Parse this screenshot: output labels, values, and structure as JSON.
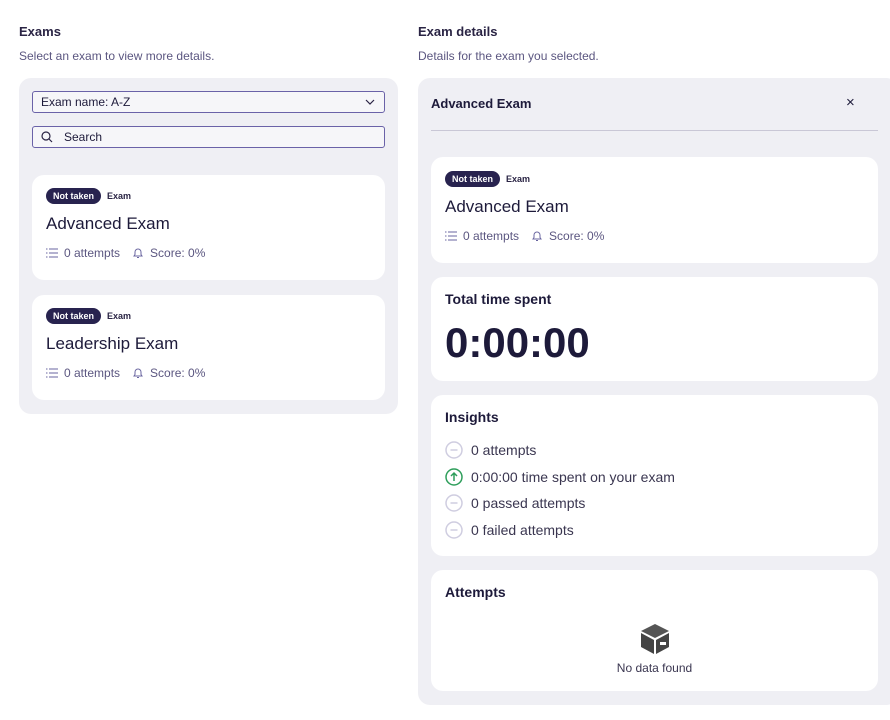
{
  "exams": {
    "title": "Exams",
    "subtitle": "Select an exam to view more details.",
    "sort_value": "Exam name: A-Z",
    "search_placeholder": "Search",
    "items": [
      {
        "status": "Not taken",
        "type": "Exam",
        "name": "Advanced Exam",
        "attempts": "0 attempts",
        "score": "Score: 0%"
      },
      {
        "status": "Not taken",
        "type": "Exam",
        "name": "Leadership Exam",
        "attempts": "0 attempts",
        "score": "Score: 0%"
      }
    ]
  },
  "details": {
    "title": "Exam details",
    "subtitle": "Details for the exam you selected.",
    "header": "Advanced Exam",
    "close": "×",
    "summary": {
      "status": "Not taken",
      "type": "Exam",
      "name": "Advanced Exam",
      "attempts": "0 attempts",
      "score": "Score: 0%"
    },
    "time": {
      "title": "Total time spent",
      "value": "0:00:00"
    },
    "insights": {
      "title": "Insights",
      "items": [
        {
          "icon": "minus-circle-icon",
          "text": "0 attempts"
        },
        {
          "icon": "arrow-up-circle-icon",
          "text": "0:00:00 time spent on your exam"
        },
        {
          "icon": "minus-circle-icon",
          "text": "0 passed attempts"
        },
        {
          "icon": "minus-circle-icon",
          "text": "0 failed attempts"
        }
      ]
    },
    "attempts": {
      "title": "Attempts",
      "empty": "No data found"
    }
  },
  "colors": {
    "accent": "#28234f",
    "positive": "#2e9e5b",
    "panel": "#efeff4"
  }
}
